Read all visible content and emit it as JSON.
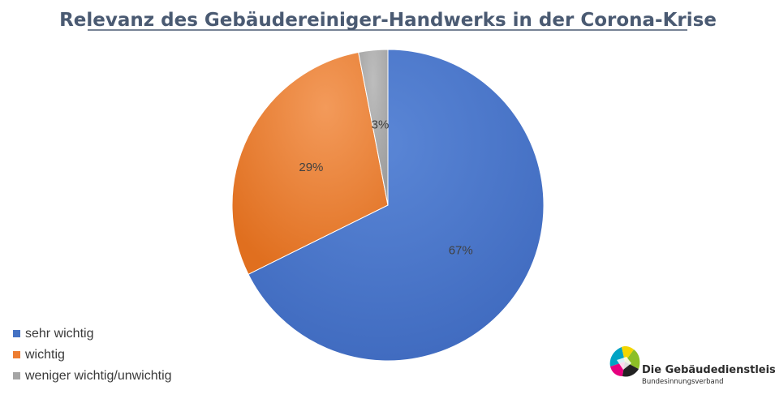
{
  "chart_data": {
    "type": "pie",
    "title": "Relevanz des Gebäudereiniger-Handwerks in der Corona-Krise",
    "categories": [
      "sehr wichtig",
      "wichtig",
      "weniger wichtig/unwichtig"
    ],
    "values": [
      67,
      29,
      3
    ],
    "value_labels": [
      "67%",
      "29%",
      "3%"
    ],
    "colors": [
      "#4472c4",
      "#ed7d31",
      "#a5a5a5"
    ],
    "legend_position": "bottom-left"
  },
  "logo": {
    "name": "Die Gebäudedienstleister",
    "subtitle": "Bundesinnungsverband"
  }
}
